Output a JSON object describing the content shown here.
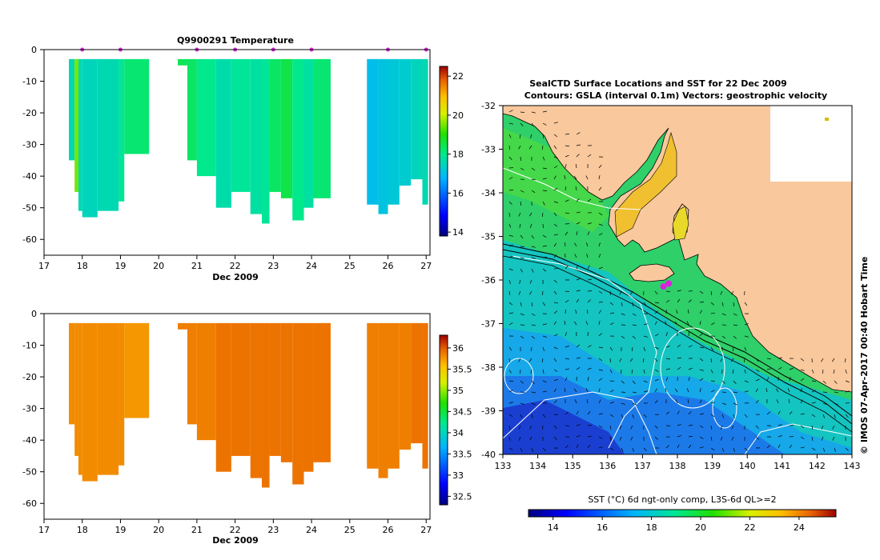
{
  "chart_data": [
    {
      "id": "temp",
      "type": "heatmap",
      "title": "Q9900291  Temperature",
      "xlabel": "Dec 2009",
      "ylabel": "",
      "xlim": [
        17,
        27.1
      ],
      "ylim": [
        -65,
        0
      ],
      "xticks": [
        17,
        18,
        19,
        20,
        21,
        22,
        23,
        24,
        25,
        26,
        27
      ],
      "yticks": [
        0,
        -10,
        -20,
        -30,
        -40,
        -50,
        -60
      ],
      "profile_markers_x": [
        18,
        19,
        21,
        22,
        23,
        24,
        26,
        27
      ],
      "profiles": [
        {
          "x0": 17.65,
          "x1": 17.8,
          "bottom": -35,
          "value": 17.6
        },
        {
          "x0": 17.8,
          "x1": 17.9,
          "bottom": -45,
          "value": 19.5
        },
        {
          "x0": 17.9,
          "x1": 18.0,
          "bottom": -51,
          "value": 17.6
        },
        {
          "x0": 18.0,
          "x1": 18.4,
          "bottom": -53,
          "value": 17.5
        },
        {
          "x0": 18.4,
          "x1": 18.95,
          "bottom": -51,
          "value": 17.6
        },
        {
          "x0": 18.95,
          "x1": 19.1,
          "bottom": -48,
          "value": 17.9
        },
        {
          "x0": 19.1,
          "x1": 19.75,
          "bottom": -33,
          "value": 18.2
        },
        {
          "x0": 20.5,
          "x1": 20.75,
          "bottom": -5,
          "value": 18.4
        },
        {
          "x0": 20.75,
          "x1": 21.0,
          "bottom": -35,
          "value": 18.3
        },
        {
          "x0": 21.0,
          "x1": 21.5,
          "bottom": -40,
          "value": 18.0
        },
        {
          "x0": 21.5,
          "x1": 21.9,
          "bottom": -50,
          "value": 17.7
        },
        {
          "x0": 21.9,
          "x1": 22.4,
          "bottom": -45,
          "value": 17.9
        },
        {
          "x0": 22.4,
          "x1": 22.7,
          "bottom": -52,
          "value": 17.8
        },
        {
          "x0": 22.7,
          "x1": 22.9,
          "bottom": -55,
          "value": 17.9
        },
        {
          "x0": 22.9,
          "x1": 23.2,
          "bottom": -45,
          "value": 18.3
        },
        {
          "x0": 23.2,
          "x1": 23.5,
          "bottom": -47,
          "value": 18.5
        },
        {
          "x0": 23.5,
          "x1": 23.8,
          "bottom": -54,
          "value": 18.0
        },
        {
          "x0": 23.8,
          "x1": 24.05,
          "bottom": -50,
          "value": 17.8
        },
        {
          "x0": 24.05,
          "x1": 24.5,
          "bottom": -47,
          "value": 18.2
        },
        {
          "x0": 25.45,
          "x1": 25.75,
          "bottom": -49,
          "value": 17.0
        },
        {
          "x0": 25.75,
          "x1": 26.0,
          "bottom": -52,
          "value": 17.1
        },
        {
          "x0": 26.0,
          "x1": 26.3,
          "bottom": -49,
          "value": 17.2
        },
        {
          "x0": 26.3,
          "x1": 26.6,
          "bottom": -43,
          "value": 17.3
        },
        {
          "x0": 26.6,
          "x1": 26.9,
          "bottom": -41,
          "value": 17.5
        },
        {
          "x0": 26.9,
          "x1": 27.05,
          "bottom": -49,
          "value": 17.6
        }
      ],
      "colorbar": {
        "range": [
          13.8,
          22.5
        ],
        "ticks": [
          22,
          20,
          18,
          16,
          14
        ]
      }
    },
    {
      "id": "sal",
      "type": "heatmap",
      "title": "",
      "xlabel": "Dec 2009",
      "ylabel": "",
      "xlim": [
        17,
        27.1
      ],
      "ylim": [
        -65,
        0
      ],
      "xticks": [
        17,
        18,
        19,
        20,
        21,
        22,
        23,
        24,
        25,
        26,
        27
      ],
      "yticks": [
        0,
        -10,
        -20,
        -30,
        -40,
        -50,
        -60
      ],
      "profiles": [
        {
          "x0": 17.65,
          "x1": 17.8,
          "bottom": -35,
          "value": 35.8
        },
        {
          "x0": 17.8,
          "x1": 17.9,
          "bottom": -45,
          "value": 35.8
        },
        {
          "x0": 17.9,
          "x1": 18.0,
          "bottom": -51,
          "value": 35.8
        },
        {
          "x0": 18.0,
          "x1": 18.4,
          "bottom": -53,
          "value": 35.8
        },
        {
          "x0": 18.4,
          "x1": 18.95,
          "bottom": -51,
          "value": 35.8
        },
        {
          "x0": 18.95,
          "x1": 19.1,
          "bottom": -48,
          "value": 35.8
        },
        {
          "x0": 19.1,
          "x1": 19.75,
          "bottom": -33,
          "value": 35.75
        },
        {
          "x0": 20.5,
          "x1": 20.75,
          "bottom": -5,
          "value": 35.85
        },
        {
          "x0": 20.75,
          "x1": 21.0,
          "bottom": -35,
          "value": 35.85
        },
        {
          "x0": 21.0,
          "x1": 21.5,
          "bottom": -40,
          "value": 35.85
        },
        {
          "x0": 21.5,
          "x1": 21.9,
          "bottom": -50,
          "value": 35.9
        },
        {
          "x0": 21.9,
          "x1": 22.4,
          "bottom": -45,
          "value": 35.9
        },
        {
          "x0": 22.4,
          "x1": 22.7,
          "bottom": -52,
          "value": 35.9
        },
        {
          "x0": 22.7,
          "x1": 22.9,
          "bottom": -55,
          "value": 35.9
        },
        {
          "x0": 22.9,
          "x1": 23.2,
          "bottom": -45,
          "value": 35.9
        },
        {
          "x0": 23.2,
          "x1": 23.5,
          "bottom": -47,
          "value": 35.9
        },
        {
          "x0": 23.5,
          "x1": 23.8,
          "bottom": -54,
          "value": 35.9
        },
        {
          "x0": 23.8,
          "x1": 24.05,
          "bottom": -50,
          "value": 35.9
        },
        {
          "x0": 24.05,
          "x1": 24.5,
          "bottom": -47,
          "value": 35.9
        },
        {
          "x0": 25.45,
          "x1": 25.75,
          "bottom": -49,
          "value": 35.85
        },
        {
          "x0": 25.75,
          "x1": 26.0,
          "bottom": -52,
          "value": 35.85
        },
        {
          "x0": 26.0,
          "x1": 26.3,
          "bottom": -49,
          "value": 35.85
        },
        {
          "x0": 26.3,
          "x1": 26.6,
          "bottom": -43,
          "value": 35.85
        },
        {
          "x0": 26.6,
          "x1": 26.9,
          "bottom": -41,
          "value": 35.9
        },
        {
          "x0": 26.9,
          "x1": 27.05,
          "bottom": -49,
          "value": 35.9
        }
      ],
      "colorbar": {
        "range": [
          32.3,
          36.3
        ],
        "ticks": [
          36,
          35.5,
          35,
          34.5,
          34,
          33.5,
          33,
          32.5
        ]
      }
    },
    {
      "id": "map",
      "type": "heatmap",
      "title": "SealCTD Surface Locations and SST for 22 Dec 2009",
      "subtitle": "Contours: GSLA (interval 0.1m) Vectors: geostrophic velocity",
      "xlim": [
        133,
        143
      ],
      "ylim": [
        -40,
        -32
      ],
      "xticks": [
        133,
        134,
        135,
        136,
        137,
        138,
        139,
        140,
        141,
        142,
        143
      ],
      "yticks": [
        -32,
        -33,
        -34,
        -35,
        -36,
        -37,
        -38,
        -39,
        -40
      ],
      "seal_locations": [
        {
          "lon": 137.6,
          "lat": -36.15
        },
        {
          "lon": 137.75,
          "lat": -36.08
        }
      ],
      "colorbar_label": "SST (°C) 6d ngt-only comp, L3S-6d QL>=2",
      "colorbar": {
        "range": [
          13,
          25.5
        ],
        "ticks": [
          14,
          16,
          18,
          20,
          22,
          24
        ]
      },
      "side_label": "© IMOS 07-Apr-2017 00:40 Hobart Time"
    }
  ],
  "colors": {
    "land": "#f9c89c",
    "marker": "#dd22dd",
    "coastline": "#000000",
    "contour": "#ffffff"
  }
}
